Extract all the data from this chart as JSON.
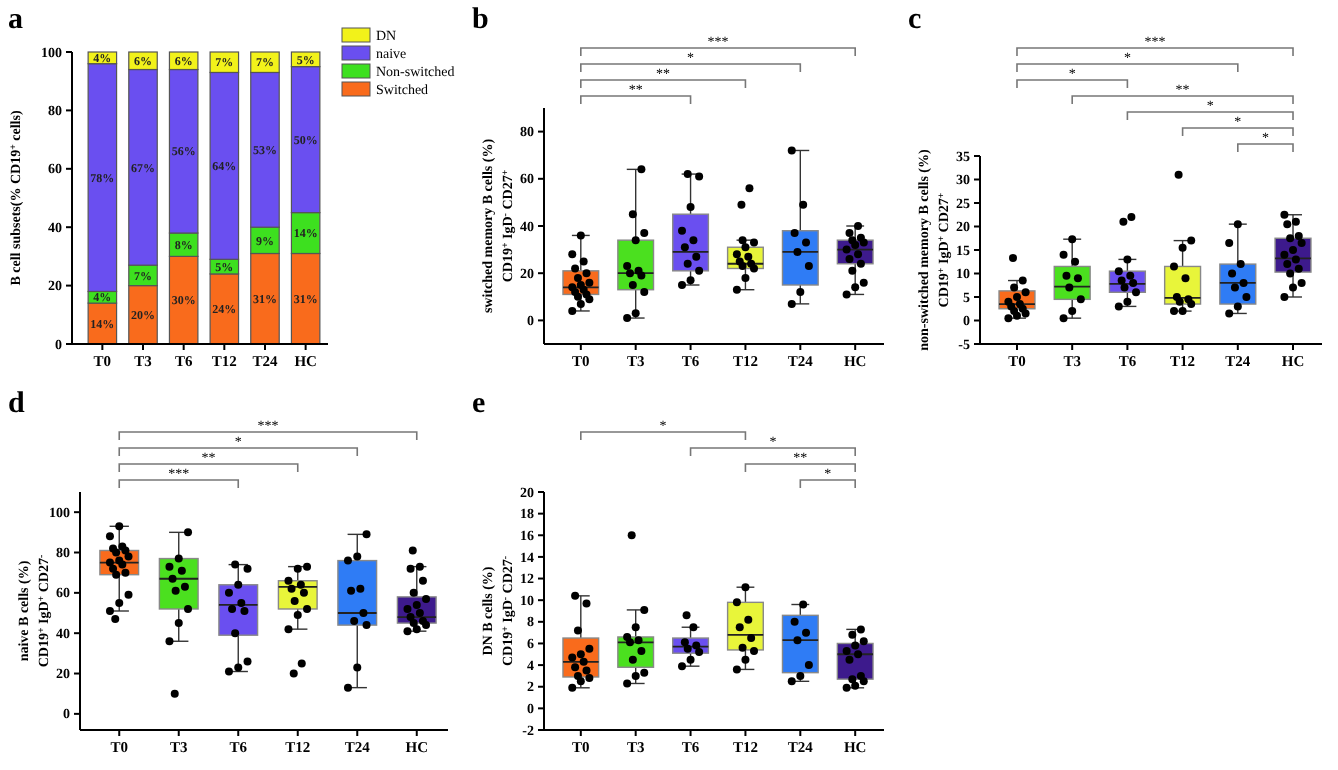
{
  "chart_data": [
    {
      "type": "bar",
      "title": "a",
      "stacked": true,
      "legend": "right",
      "ylabel": "B cell subsets(% CD19$^{+}$ cells)",
      "categories": [
        "T0",
        "T3",
        "T6",
        "T12",
        "T24",
        "HC"
      ],
      "ylim": [
        0,
        100
      ],
      "yticks": [
        0,
        20,
        40,
        60,
        80,
        100
      ],
      "series": [
        {
          "name": "Switched",
          "color": "#f96b1c",
          "values": [
            14,
            20,
            30,
            24,
            31,
            31
          ],
          "value_labels": [
            "14%",
            "20%",
            "30%",
            "24%",
            "31%",
            "31%"
          ]
        },
        {
          "name": "Non-switched",
          "color": "#3de01f",
          "values": [
            4,
            7,
            8,
            5,
            9,
            14
          ],
          "value_labels": [
            "4%",
            "7%",
            "8%",
            "5%",
            "9%",
            "14%"
          ]
        },
        {
          "name": "naive",
          "color": "#6a4ff0",
          "values": [
            78,
            67,
            56,
            64,
            53,
            50
          ],
          "value_labels": [
            "78%",
            "67%",
            "56%",
            "64%",
            "53%",
            "50%"
          ]
        },
        {
          "name": "DN",
          "color": "#f2f21a",
          "values": [
            4,
            6,
            6,
            7,
            7,
            5
          ],
          "value_labels": [
            "4%",
            "6%",
            "6%",
            "7%",
            "7%",
            "5%"
          ]
        }
      ]
    },
    {
      "type": "box",
      "title": "b",
      "ylabel": "switched memory B cells (%)\nCD19$^{+}$ IgD$^{-}$CD27$^{+}$",
      "categories": [
        "T0",
        "T3",
        "T6",
        "T12",
        "T24",
        "HC"
      ],
      "ylim": [
        -10,
        90
      ],
      "yticks": [
        0,
        20,
        40,
        60,
        80
      ],
      "colors": [
        "#f96b1c",
        "#4be01f",
        "#6a4ff0",
        "#e8f53a",
        "#2f7cf5",
        "#3d1a8c"
      ],
      "annotations": [
        "***",
        "*",
        "**",
        "**"
      ],
      "boxes": [
        {
          "low": 4,
          "q1": 11,
          "median": 14,
          "q3": 21,
          "high": 36
        },
        {
          "low": 1,
          "q1": 13,
          "median": 20,
          "q3": 34,
          "high": 64
        },
        {
          "low": 15,
          "q1": 21,
          "median": 29,
          "q3": 45,
          "high": 62
        },
        {
          "low": 13,
          "q1": 22,
          "median": 24,
          "q3": 31,
          "high": 34,
          "outliers": [
            49,
            56
          ]
        },
        {
          "low": 7,
          "q1": 15,
          "median": 29,
          "q3": 38,
          "high": 72
        },
        {
          "low": 11,
          "q1": 24,
          "median": 30,
          "q3": 34,
          "high": 40
        }
      ],
      "series": [
        {
          "type": "scatter",
          "color": "#000000",
          "marker": "circle",
          "x": [
            "T0",
            "T0",
            "T0",
            "T0",
            "T0",
            "T0",
            "T0",
            "T0",
            "T0",
            "T0",
            "T0",
            "T0",
            "T0",
            "T0",
            "T0",
            "T0",
            "T3",
            "T3",
            "T3",
            "T3",
            "T3",
            "T3",
            "T3",
            "T3",
            "T3",
            "T3",
            "T3",
            "T3",
            "T6",
            "T6",
            "T6",
            "T6",
            "T6",
            "T6",
            "T6",
            "T6",
            "T6",
            "T6",
            "T6",
            "T12",
            "T12",
            "T12",
            "T12",
            "T12",
            "T12",
            "T12",
            "T12",
            "T12",
            "T12",
            "T12",
            "T24",
            "T24",
            "T24",
            "T24",
            "T24",
            "T24",
            "T24",
            "T24",
            "HC",
            "HC",
            "HC",
            "HC",
            "HC",
            "HC",
            "HC",
            "HC",
            "HC",
            "HC",
            "HC",
            "HC",
            "HC",
            "HC"
          ],
          "values": [
            4,
            7,
            9,
            10,
            11,
            12,
            13,
            14,
            15,
            16,
            18,
            20,
            22,
            25,
            28,
            36,
            1,
            3,
            12,
            15,
            19,
            20,
            21,
            23,
            34,
            37,
            45,
            64,
            15,
            17,
            21,
            24,
            27,
            31,
            34,
            38,
            48,
            61,
            62,
            13,
            18,
            22,
            23,
            24,
            25,
            27,
            28,
            31,
            33,
            34,
            7,
            12,
            23,
            29,
            33,
            37,
            49,
            72,
            11,
            14,
            16,
            21,
            24,
            26,
            28,
            30,
            32,
            33,
            34,
            35,
            37,
            40
          ]
        }
      ]
    },
    {
      "type": "box",
      "title": "c",
      "ylabel": "non-switched memory B cells (%)\nCD19$^{+}$ IgD$^{+}$CD27$^{+}$",
      "categories": [
        "T0",
        "T3",
        "T6",
        "T12",
        "T24",
        "HC"
      ],
      "ylim": [
        -5,
        35
      ],
      "yticks": [
        -5,
        0,
        5,
        10,
        15,
        20,
        25,
        30,
        35
      ],
      "colors": [
        "#f96b1c",
        "#4be01f",
        "#6a4ff0",
        "#e8f53a",
        "#2f7cf5",
        "#3d1a8c"
      ],
      "annotations": [
        "***",
        "*",
        "*",
        "**",
        "*",
        "*",
        "*"
      ],
      "boxes": [
        {
          "low": 0.5,
          "q1": 2.5,
          "median": 3.5,
          "q3": 6.3,
          "high": 8.5,
          "outliers": [
            13.3
          ]
        },
        {
          "low": 0.5,
          "q1": 4.5,
          "median": 7.2,
          "q3": 11.5,
          "high": 17.3
        },
        {
          "low": 3,
          "q1": 6,
          "median": 7.8,
          "q3": 10.5,
          "high": 13,
          "outliers": [
            21,
            22
          ]
        },
        {
          "low": 2,
          "q1": 3.5,
          "median": 4.8,
          "q3": 11.5,
          "high": 17,
          "outliers": [
            31
          ]
        },
        {
          "low": 1.5,
          "q1": 3.5,
          "median": 8,
          "q3": 12,
          "high": 20.5
        },
        {
          "low": 5,
          "q1": 10.3,
          "median": 13.2,
          "q3": 17.5,
          "high": 22.5
        }
      ],
      "series": [
        {
          "type": "scatter",
          "color": "#000000",
          "marker": "circle",
          "x": [
            "T0",
            "T0",
            "T0",
            "T0",
            "T0",
            "T0",
            "T0",
            "T0",
            "T0",
            "T0",
            "T0",
            "T0",
            "T3",
            "T3",
            "T3",
            "T3",
            "T3",
            "T3",
            "T3",
            "T3",
            "T3",
            "T6",
            "T6",
            "T6",
            "T6",
            "T6",
            "T6",
            "T6",
            "T6",
            "T6",
            "T12",
            "T12",
            "T12",
            "T12",
            "T12",
            "T12",
            "T12",
            "T12",
            "T12",
            "T12",
            "T24",
            "T24",
            "T24",
            "T24",
            "T24",
            "T24",
            "T24",
            "T24",
            "T24",
            "HC",
            "HC",
            "HC",
            "HC",
            "HC",
            "HC",
            "HC",
            "HC",
            "HC",
            "HC",
            "HC",
            "HC",
            "HC",
            "HC",
            "HC"
          ],
          "values": [
            0.5,
            1,
            1.5,
            2,
            2.5,
            3,
            3.5,
            4,
            5,
            6,
            7,
            8.5,
            0.5,
            2,
            4.5,
            7,
            9,
            9.5,
            12.5,
            14,
            17.3,
            3,
            4,
            6,
            7,
            8,
            8.5,
            9.5,
            10.5,
            13,
            2,
            2,
            3.5,
            4,
            4.5,
            5,
            9,
            11.5,
            15.5,
            17,
            1.5,
            3,
            5,
            7,
            8,
            10,
            12,
            16.5,
            20.5,
            5,
            7,
            8,
            10,
            11,
            12,
            13,
            14,
            15,
            16.5,
            17.5,
            18,
            20.5,
            21,
            22.5
          ]
        }
      ]
    },
    {
      "type": "box",
      "title": "d",
      "ylabel": "naive B cells (%)\nCD19$^{+}$ IgD$^{+}$CD27$^{-}$",
      "categories": [
        "T0",
        "T3",
        "T6",
        "T12",
        "T24",
        "HC"
      ],
      "ylim": [
        -8,
        110
      ],
      "yticks": [
        0,
        20,
        40,
        60,
        80,
        100
      ],
      "colors": [
        "#f96b1c",
        "#4be01f",
        "#6a4ff0",
        "#e8f53a",
        "#2f7cf5",
        "#3d1a8c"
      ],
      "annotations": [
        "***",
        "*",
        "**",
        "***"
      ],
      "boxes": [
        {
          "low": 51,
          "q1": 69,
          "median": 75,
          "q3": 81,
          "high": 93,
          "outliers": [
            47
          ]
        },
        {
          "low": 36,
          "q1": 52,
          "median": 67,
          "q3": 77,
          "high": 90,
          "outliers": [
            10
          ]
        },
        {
          "low": 21,
          "q1": 39,
          "median": 54,
          "q3": 64,
          "high": 74
        },
        {
          "low": 42,
          "q1": 52,
          "median": 63,
          "q3": 66,
          "high": 73,
          "outliers": [
            20,
            25
          ]
        },
        {
          "low": 13,
          "q1": 44,
          "median": 50,
          "q3": 76,
          "high": 89
        },
        {
          "low": 41,
          "q1": 45,
          "median": 48,
          "q3": 58,
          "high": 73,
          "outliers": [
            81
          ]
        }
      ],
      "series": [
        {
          "type": "scatter",
          "color": "#000000",
          "marker": "circle",
          "x": [
            "T0",
            "T0",
            "T0",
            "T0",
            "T0",
            "T0",
            "T0",
            "T0",
            "T0",
            "T0",
            "T0",
            "T0",
            "T0",
            "T0",
            "T0",
            "T0",
            "T3",
            "T3",
            "T3",
            "T3",
            "T3",
            "T3",
            "T3",
            "T3",
            "T3",
            "T3",
            "T6",
            "T6",
            "T6",
            "T6",
            "T6",
            "T6",
            "T6",
            "T6",
            "T6",
            "T6",
            "T6",
            "T12",
            "T12",
            "T12",
            "T12",
            "T12",
            "T12",
            "T12",
            "T12",
            "T12",
            "T12",
            "T24",
            "T24",
            "T24",
            "T24",
            "T24",
            "T24",
            "T24",
            "T24",
            "T24",
            "T24",
            "HC",
            "HC",
            "HC",
            "HC",
            "HC",
            "HC",
            "HC",
            "HC",
            "HC",
            "HC",
            "HC",
            "HC",
            "HC",
            "HC"
          ],
          "values": [
            51,
            55,
            59,
            69,
            70,
            72,
            74,
            75,
            76,
            78,
            80,
            81,
            82,
            83,
            88,
            93,
            36,
            45,
            52,
            61,
            63,
            67,
            71,
            73,
            77,
            90,
            21,
            23,
            26,
            40,
            51,
            52,
            55,
            60,
            64,
            72,
            74,
            42,
            49,
            52,
            56,
            60,
            62,
            64,
            66,
            72,
            73,
            13,
            23,
            44,
            46,
            50,
            61,
            62,
            76,
            78,
            89,
            41,
            42,
            44,
            45,
            46,
            48,
            50,
            52,
            54,
            57,
            60,
            66,
            72,
            73
          ]
        }
      ]
    },
    {
      "type": "box",
      "title": "e",
      "ylabel": "DN B cells (%)\nCD19$^{+}$ IgD$^{-}$CD27$^{-}$",
      "categories": [
        "T0",
        "T3",
        "T6",
        "T12",
        "T24",
        "HC"
      ],
      "ylim": [
        -2,
        20
      ],
      "yticks": [
        -2,
        0,
        2,
        4,
        6,
        8,
        10,
        12,
        14,
        16,
        18,
        20
      ],
      "colors": [
        "#f96b1c",
        "#4be01f",
        "#6a4ff0",
        "#e8f53a",
        "#2f7cf5",
        "#3d1a8c"
      ],
      "annotations": [
        "*",
        "*",
        "**",
        "*"
      ],
      "boxes": [
        {
          "low": 1.9,
          "q1": 2.9,
          "median": 4.3,
          "q3": 6.5,
          "high": 10.4
        },
        {
          "low": 2.3,
          "q1": 3.8,
          "median": 6.1,
          "q3": 6.6,
          "high": 9.1,
          "outliers": [
            16
          ]
        },
        {
          "low": 3.9,
          "q1": 5.1,
          "median": 5.7,
          "q3": 6.5,
          "high": 7.5,
          "outliers": [
            8.6
          ]
        },
        {
          "low": 3.6,
          "q1": 5.4,
          "median": 6.8,
          "q3": 9.8,
          "high": 11.2
        },
        {
          "low": 2.5,
          "q1": 3.3,
          "median": 6.3,
          "q3": 8.6,
          "high": 9.6
        },
        {
          "low": 1.9,
          "q1": 2.7,
          "median": 5,
          "q3": 6,
          "high": 7.3
        }
      ],
      "series": [
        {
          "type": "scatter",
          "color": "#000000",
          "marker": "circle",
          "x": [
            "T0",
            "T0",
            "T0",
            "T0",
            "T0",
            "T0",
            "T0",
            "T0",
            "T0",
            "T0",
            "T0",
            "T0",
            "T0",
            "T3",
            "T3",
            "T3",
            "T3",
            "T3",
            "T3",
            "T3",
            "T3",
            "T3",
            "T3",
            "T6",
            "T6",
            "T6",
            "T6",
            "T6",
            "T6",
            "T6",
            "T12",
            "T12",
            "T12",
            "T12",
            "T12",
            "T12",
            "T12",
            "T12",
            "T12",
            "T24",
            "T24",
            "T24",
            "T24",
            "T24",
            "T24",
            "T24",
            "HC",
            "HC",
            "HC",
            "HC",
            "HC",
            "HC",
            "HC",
            "HC",
            "HC",
            "HC",
            "HC",
            "HC"
          ],
          "values": [
            1.9,
            2.5,
            2.8,
            3,
            3.5,
            3.8,
            4.3,
            4.7,
            5,
            5.5,
            7.2,
            9.7,
            10.4,
            2.3,
            3,
            3.3,
            4.5,
            5.3,
            6.1,
            6.3,
            6.6,
            7.5,
            9.1,
            3.9,
            4.5,
            5.2,
            5.5,
            5.8,
            6.1,
            7.5,
            3.6,
            4.5,
            5.3,
            5.6,
            6.5,
            7.5,
            8.2,
            9.8,
            11.2,
            2.5,
            3,
            4,
            6.3,
            7,
            8,
            9.6,
            1.9,
            2.1,
            2.5,
            2.7,
            3,
            4.5,
            5,
            5.3,
            5.8,
            6.2,
            6.8,
            7.3
          ]
        }
      ]
    }
  ]
}
